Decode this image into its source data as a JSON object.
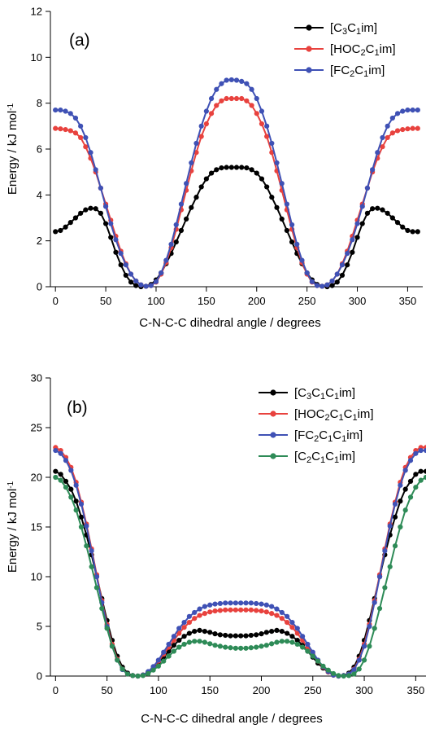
{
  "chart_data": [
    {
      "type": "line",
      "panel_label": "(a)",
      "xlabel": "C-N-C-C dihedral angle / degrees",
      "ylabel": "Energy / kJ mol",
      "ylabel_sup": "-1",
      "xlim": [
        -5,
        365
      ],
      "ylim": [
        0,
        12
      ],
      "xticks": [
        0,
        50,
        100,
        150,
        200,
        250,
        300,
        350
      ],
      "yticks": [
        0,
        2,
        4,
        6,
        8,
        10,
        12
      ],
      "legend_position": "top-right",
      "x": [
        0,
        5,
        10,
        15,
        20,
        25,
        30,
        35,
        40,
        45,
        50,
        55,
        60,
        65,
        70,
        75,
        80,
        85,
        90,
        95,
        100,
        105,
        110,
        115,
        120,
        125,
        130,
        135,
        140,
        145,
        150,
        155,
        160,
        165,
        170,
        175,
        180,
        185,
        190,
        195,
        200,
        205,
        210,
        215,
        220,
        225,
        230,
        235,
        240,
        245,
        250,
        255,
        260,
        265,
        270,
        275,
        280,
        285,
        290,
        295,
        300,
        305,
        310,
        315,
        320,
        325,
        330,
        335,
        340,
        345,
        350,
        355,
        360
      ],
      "series": [
        {
          "name": "[C3C1im]",
          "legend": [
            [
              "[C",
              ""
            ],
            [
              "3",
              "sub"
            ],
            [
              "C",
              ""
            ],
            [
              "1",
              "sub"
            ],
            [
              "im]",
              ""
            ]
          ],
          "color": "#000000",
          "values": [
            2.4,
            2.45,
            2.6,
            2.8,
            3.0,
            3.2,
            3.35,
            3.42,
            3.4,
            3.2,
            2.75,
            2.15,
            1.5,
            0.95,
            0.5,
            0.2,
            0.05,
            0.0,
            0.02,
            0.1,
            0.3,
            0.6,
            1.0,
            1.45,
            1.95,
            2.45,
            2.95,
            3.45,
            3.9,
            4.35,
            4.7,
            4.95,
            5.1,
            5.18,
            5.2,
            5.2,
            5.2,
            5.2,
            5.18,
            5.1,
            4.95,
            4.7,
            4.35,
            3.9,
            3.45,
            2.95,
            2.45,
            1.95,
            1.45,
            1.0,
            0.6,
            0.3,
            0.1,
            0.02,
            0.0,
            0.05,
            0.2,
            0.5,
            0.95,
            1.5,
            2.15,
            2.75,
            3.2,
            3.4,
            3.42,
            3.35,
            3.2,
            3.0,
            2.8,
            2.6,
            2.45,
            2.4,
            2.4
          ]
        },
        {
          "name": "[HOC2C1im]",
          "legend": [
            [
              "[HOC",
              ""
            ],
            [
              "2",
              "sub"
            ],
            [
              "C",
              ""
            ],
            [
              "1",
              "sub"
            ],
            [
              "im]",
              ""
            ]
          ],
          "color": "#e8423e",
          "values": [
            6.9,
            6.88,
            6.85,
            6.8,
            6.7,
            6.5,
            6.1,
            5.6,
            5.0,
            4.3,
            3.6,
            2.9,
            2.2,
            1.55,
            1.0,
            0.55,
            0.25,
            0.08,
            0.02,
            0.05,
            0.2,
            0.55,
            1.05,
            1.7,
            2.5,
            3.35,
            4.2,
            5.05,
            5.85,
            6.55,
            7.1,
            7.55,
            7.9,
            8.1,
            8.2,
            8.2,
            8.2,
            8.2,
            8.1,
            7.9,
            7.55,
            7.1,
            6.55,
            5.85,
            5.05,
            4.2,
            3.35,
            2.5,
            1.7,
            1.05,
            0.55,
            0.2,
            0.05,
            0.02,
            0.08,
            0.25,
            0.55,
            1.0,
            1.55,
            2.2,
            2.9,
            3.6,
            4.3,
            5.0,
            5.6,
            6.1,
            6.5,
            6.7,
            6.8,
            6.85,
            6.88,
            6.9,
            6.9
          ]
        },
        {
          "name": "[FC2C1im]",
          "legend": [
            [
              "[FC",
              ""
            ],
            [
              "2",
              "sub"
            ],
            [
              "C",
              ""
            ],
            [
              "1",
              "sub"
            ],
            [
              "im]",
              ""
            ]
          ],
          "color": "#3f51b5",
          "values": [
            7.7,
            7.7,
            7.65,
            7.55,
            7.35,
            7.0,
            6.5,
            5.85,
            5.1,
            4.3,
            3.5,
            2.75,
            2.05,
            1.45,
            0.95,
            0.55,
            0.25,
            0.08,
            0.02,
            0.05,
            0.22,
            0.6,
            1.15,
            1.85,
            2.7,
            3.6,
            4.5,
            5.4,
            6.25,
            7.0,
            7.65,
            8.2,
            8.6,
            8.85,
            9.0,
            9.02,
            9.0,
            8.95,
            8.85,
            8.6,
            8.2,
            7.65,
            7.0,
            6.25,
            5.4,
            4.5,
            3.6,
            2.7,
            1.85,
            1.15,
            0.6,
            0.22,
            0.05,
            0.02,
            0.08,
            0.25,
            0.55,
            0.95,
            1.45,
            2.05,
            2.75,
            3.5,
            4.3,
            5.1,
            5.85,
            6.5,
            7.0,
            7.35,
            7.55,
            7.65,
            7.7,
            7.7,
            7.7
          ]
        }
      ]
    },
    {
      "type": "line",
      "panel_label": "(b)",
      "xlabel": "C-N-C-C dihedral angle / degrees",
      "ylabel": "Energy / kJ mol",
      "ylabel_sup": "-1",
      "xlim": [
        -5,
        360
      ],
      "ylim": [
        0,
        30
      ],
      "xticks": [
        0,
        50,
        100,
        150,
        200,
        250,
        300,
        350
      ],
      "yticks": [
        0,
        5,
        10,
        15,
        20,
        25,
        30
      ],
      "legend_position": "top-right",
      "x": [
        0,
        5,
        10,
        15,
        20,
        25,
        30,
        35,
        40,
        45,
        50,
        55,
        60,
        65,
        70,
        75,
        80,
        85,
        90,
        95,
        100,
        105,
        110,
        115,
        120,
        125,
        130,
        135,
        140,
        145,
        150,
        155,
        160,
        165,
        170,
        175,
        180,
        185,
        190,
        195,
        200,
        205,
        210,
        215,
        220,
        225,
        230,
        235,
        240,
        245,
        250,
        255,
        260,
        265,
        270,
        275,
        280,
        285,
        290,
        295,
        300,
        305,
        310,
        315,
        320,
        325,
        330,
        335,
        340,
        345,
        350,
        355,
        360
      ],
      "series": [
        {
          "name": "[C3C1C1im]",
          "legend": [
            [
              "[C",
              ""
            ],
            [
              "3",
              "sub"
            ],
            [
              "C",
              ""
            ],
            [
              "1",
              "sub"
            ],
            [
              "C",
              ""
            ],
            [
              "1",
              "sub"
            ],
            [
              "im]",
              ""
            ]
          ],
          "color": "#000000",
          "values": [
            20.6,
            20.3,
            19.6,
            18.8,
            17.6,
            16.0,
            14.2,
            12.2,
            10.0,
            7.8,
            5.6,
            3.6,
            2.0,
            0.9,
            0.3,
            0.05,
            0.0,
            0.1,
            0.4,
            0.8,
            1.3,
            1.9,
            2.5,
            3.1,
            3.6,
            4.0,
            4.3,
            4.5,
            4.6,
            4.5,
            4.4,
            4.25,
            4.15,
            4.1,
            4.05,
            4.05,
            4.05,
            4.05,
            4.1,
            4.15,
            4.25,
            4.4,
            4.5,
            4.6,
            4.5,
            4.3,
            4.0,
            3.6,
            3.1,
            2.5,
            1.9,
            1.3,
            0.8,
            0.4,
            0.1,
            0.0,
            0.05,
            0.3,
            0.9,
            2.0,
            3.6,
            5.6,
            7.8,
            10.0,
            12.2,
            14.2,
            16.0,
            17.6,
            18.8,
            19.6,
            20.3,
            20.6,
            20.6
          ]
        },
        {
          "name": "[HOC2C1C1im]",
          "legend": [
            [
              "[HOC",
              ""
            ],
            [
              "2",
              "sub"
            ],
            [
              "C",
              ""
            ],
            [
              "1",
              "sub"
            ],
            [
              "C",
              ""
            ],
            [
              "1",
              "sub"
            ],
            [
              "im]",
              ""
            ]
          ],
          "color": "#e8423e",
          "values": [
            23.0,
            22.7,
            22.0,
            21.0,
            19.5,
            17.5,
            15.3,
            12.8,
            10.2,
            7.6,
            5.2,
            3.2,
            1.7,
            0.7,
            0.2,
            0.05,
            0.0,
            0.1,
            0.4,
            0.9,
            1.5,
            2.2,
            2.9,
            3.6,
            4.3,
            4.9,
            5.4,
            5.8,
            6.1,
            6.3,
            6.45,
            6.55,
            6.6,
            6.65,
            6.65,
            6.65,
            6.65,
            6.65,
            6.65,
            6.6,
            6.55,
            6.45,
            6.3,
            6.1,
            5.8,
            5.4,
            4.9,
            4.3,
            3.6,
            2.9,
            2.2,
            1.5,
            0.9,
            0.4,
            0.1,
            0.0,
            0.05,
            0.2,
            0.7,
            1.7,
            3.2,
            5.2,
            7.6,
            10.2,
            12.8,
            15.3,
            17.5,
            19.5,
            21.0,
            22.0,
            22.7,
            23.0,
            23.0
          ]
        },
        {
          "name": "[FC2C1C1im]",
          "legend": [
            [
              "[FC",
              ""
            ],
            [
              "2",
              "sub"
            ],
            [
              "C",
              ""
            ],
            [
              "1",
              "sub"
            ],
            [
              "C",
              ""
            ],
            [
              "1",
              "sub"
            ],
            [
              "im]",
              ""
            ]
          ],
          "color": "#3f51b5",
          "values": [
            22.7,
            22.4,
            21.7,
            20.7,
            19.2,
            17.3,
            15.1,
            12.6,
            10.0,
            7.4,
            5.0,
            3.0,
            1.6,
            0.65,
            0.2,
            0.05,
            0.0,
            0.1,
            0.45,
            0.95,
            1.6,
            2.4,
            3.2,
            4.0,
            4.8,
            5.4,
            6.0,
            6.4,
            6.75,
            7.0,
            7.15,
            7.25,
            7.3,
            7.35,
            7.35,
            7.35,
            7.35,
            7.35,
            7.35,
            7.3,
            7.25,
            7.15,
            7.0,
            6.75,
            6.4,
            6.0,
            5.4,
            4.8,
            4.0,
            3.2,
            2.4,
            1.6,
            0.95,
            0.45,
            0.1,
            0.0,
            0.05,
            0.2,
            0.65,
            1.6,
            3.0,
            5.0,
            7.4,
            10.0,
            12.6,
            15.1,
            17.3,
            19.2,
            20.7,
            21.7,
            22.4,
            22.7,
            22.7
          ]
        },
        {
          "name": "[C2C1C1im]",
          "legend": [
            [
              "[C",
              ""
            ],
            [
              "2",
              "sub"
            ],
            [
              "C",
              ""
            ],
            [
              "1",
              "sub"
            ],
            [
              "C",
              ""
            ],
            [
              "1",
              "sub"
            ],
            [
              "im]",
              ""
            ]
          ],
          "color": "#2e8b57",
          "values": [
            20.0,
            19.7,
            19.0,
            18.0,
            16.7,
            15.0,
            13.1,
            11.0,
            8.9,
            6.8,
            4.8,
            3.0,
            1.6,
            0.7,
            0.2,
            0.05,
            0.0,
            0.05,
            0.25,
            0.6,
            1.0,
            1.5,
            2.0,
            2.5,
            2.9,
            3.2,
            3.4,
            3.5,
            3.5,
            3.4,
            3.25,
            3.1,
            3.0,
            2.9,
            2.85,
            2.8,
            2.8,
            2.8,
            2.85,
            2.9,
            3.0,
            3.1,
            3.25,
            3.4,
            3.5,
            3.5,
            3.4,
            3.2,
            2.9,
            2.5,
            2.0,
            1.5,
            1.0,
            0.6,
            0.25,
            0.05,
            0.0,
            0.05,
            0.2,
            0.7,
            1.6,
            3.0,
            4.8,
            6.8,
            8.9,
            11.0,
            13.1,
            15.0,
            16.7,
            18.0,
            19.0,
            19.7,
            20.0
          ]
        }
      ]
    }
  ]
}
